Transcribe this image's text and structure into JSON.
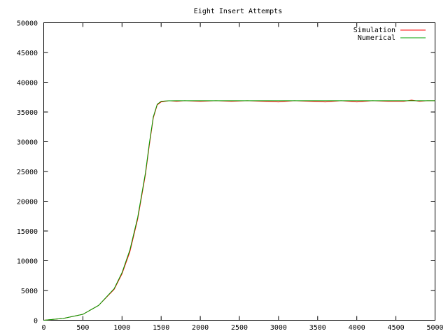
{
  "chart_data": {
    "type": "line",
    "title": "Eight Insert Attempts",
    "xlabel": "",
    "ylabel": "",
    "xlim": [
      0,
      5000
    ],
    "ylim": [
      0,
      50000
    ],
    "xticks": [
      0,
      500,
      1000,
      1500,
      2000,
      2500,
      3000,
      3500,
      4000,
      4500,
      5000
    ],
    "yticks": [
      0,
      5000,
      10000,
      15000,
      20000,
      25000,
      30000,
      35000,
      40000,
      45000,
      50000
    ],
    "grid": false,
    "legend_position": "top-right",
    "series": [
      {
        "name": "Simulation",
        "color": "#ff0000",
        "x": [
          0,
          250,
          500,
          700,
          900,
          1000,
          1100,
          1200,
          1300,
          1350,
          1400,
          1450,
          1500,
          1550,
          1600,
          1700,
          1800,
          2000,
          2200,
          2400,
          2600,
          2800,
          3000,
          3200,
          3400,
          3600,
          3800,
          4000,
          4200,
          4400,
          4600,
          4700,
          4800,
          4900,
          5000
        ],
        "y": [
          0,
          300,
          1000,
          2500,
          5200,
          7800,
          11500,
          17000,
          24500,
          29500,
          34000,
          36200,
          36700,
          36800,
          36900,
          36800,
          36900,
          36800,
          36900,
          36800,
          36900,
          36800,
          36700,
          36900,
          36800,
          36700,
          36900,
          36700,
          36900,
          36800,
          36800,
          37000,
          36800,
          36900,
          36900
        ]
      },
      {
        "name": "Numerical",
        "color": "#00a000",
        "x": [
          0,
          250,
          500,
          700,
          900,
          1000,
          1100,
          1200,
          1300,
          1350,
          1400,
          1450,
          1500,
          1550,
          1600,
          1700,
          1800,
          2000,
          2500,
          3000,
          3500,
          4000,
          4500,
          5000
        ],
        "y": [
          0,
          300,
          1000,
          2500,
          5300,
          8000,
          11800,
          17300,
          24800,
          29800,
          34200,
          36300,
          36800,
          36850,
          36880,
          36900,
          36900,
          36900,
          36900,
          36900,
          36900,
          36900,
          36900,
          36900
        ]
      }
    ]
  }
}
